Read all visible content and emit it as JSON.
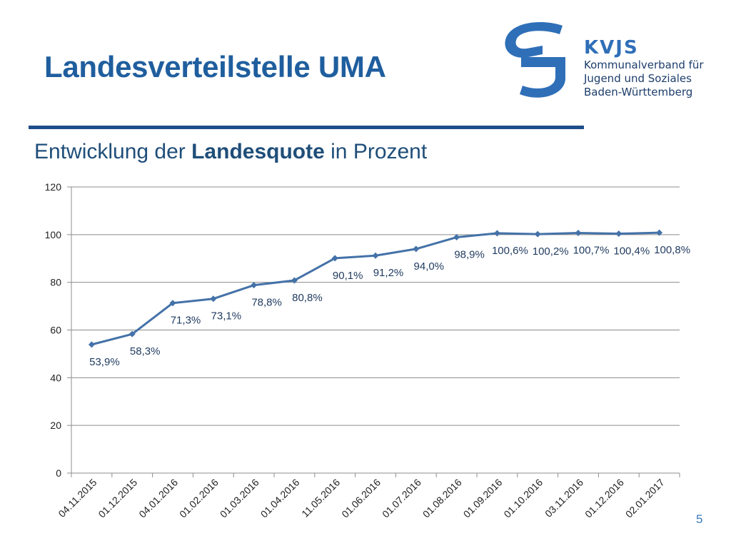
{
  "slide": {
    "title": "Landesverteilstelle UMA",
    "subtitle_pre": "Entwicklung der ",
    "subtitle_bold": "Landesquote",
    "subtitle_post": " in Prozent",
    "page_number": "5"
  },
  "logo": {
    "name": "KVJS",
    "line1": "Kommunalverband für",
    "line2": "Jugend und Soziales",
    "line3": "Baden-Württemberg",
    "color": "#2f6fb8"
  },
  "chart_data": {
    "type": "line",
    "title": "",
    "xlabel": "",
    "ylabel": "",
    "ylim": [
      0,
      120
    ],
    "yticks": [
      0,
      20,
      40,
      60,
      80,
      100,
      120
    ],
    "grid": true,
    "legend": "none",
    "line_color": "#4472a8",
    "categories": [
      "04.11.2015",
      "01.12.2015",
      "04.01.2016",
      "01.02.2016",
      "01.03.2016",
      "01.04.2016",
      "11.05.2016",
      "01.06.2016",
      "01.07.2016",
      "01.08.2016",
      "01.09.2016",
      "01.10.2016",
      "03.11.2016",
      "01.12.2016",
      "02.01.2017"
    ],
    "values": [
      53.9,
      58.3,
      71.3,
      73.1,
      78.8,
      80.8,
      90.1,
      91.2,
      94.0,
      98.9,
      100.6,
      100.2,
      100.7,
      100.4,
      100.8
    ],
    "data_labels": [
      "53,9%",
      "58,3%",
      "71,3%",
      "73,1%",
      "78,8%",
      "80,8%",
      "90,1%",
      "91,2%",
      "94,0%",
      "98,9%",
      "100,6%",
      "100,2%",
      "100,7%",
      "100,4%",
      "100,8%"
    ]
  }
}
